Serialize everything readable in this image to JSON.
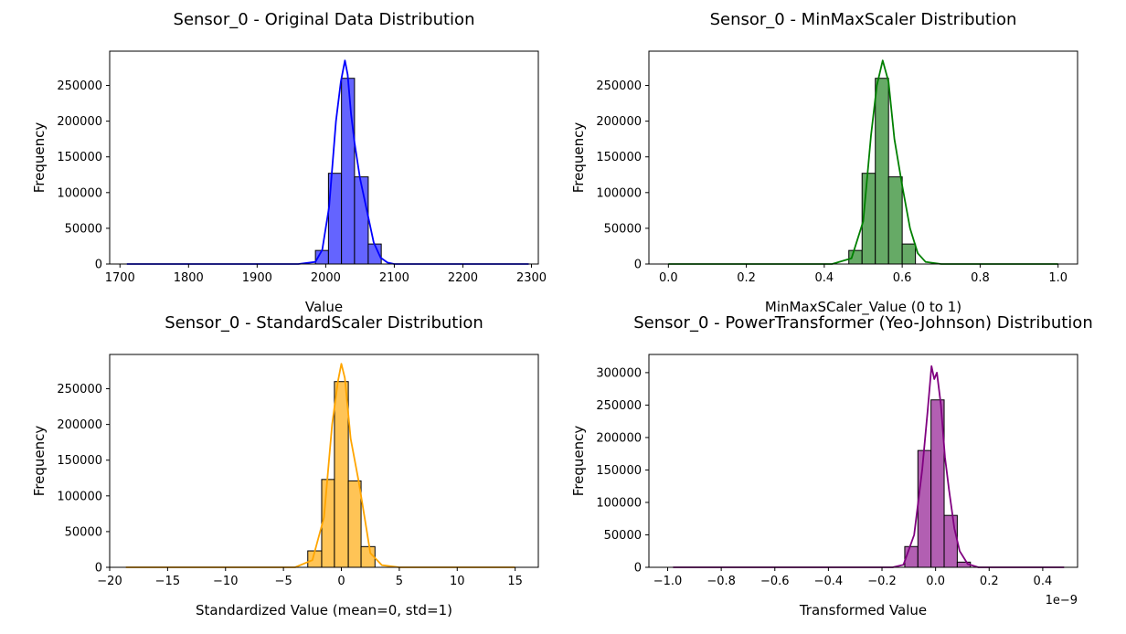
{
  "chart_data": [
    {
      "type": "histogram",
      "title": "Sensor_0 - Original Data Distribution",
      "xlabel": "Value",
      "ylabel": "Frequency",
      "xlim": [
        1685,
        2310
      ],
      "ylim": [
        0,
        298000
      ],
      "xticks": [
        1700,
        1800,
        1900,
        2000,
        2100,
        2200,
        2300
      ],
      "xtick_labels": [
        "1700",
        "1800",
        "1900",
        "2000",
        "2100",
        "2200",
        "2300"
      ],
      "yticks": [
        0,
        50000,
        100000,
        150000,
        200000,
        250000
      ],
      "ytick_labels": [
        "0",
        "50000",
        "100000",
        "150000",
        "200000",
        "250000"
      ],
      "bar_color": "#6464ff",
      "line_color": "#0000ff",
      "bins": [
        {
          "x0": 1985,
          "x1": 2004,
          "count": 19000
        },
        {
          "x0": 2004,
          "x1": 2023,
          "count": 127000
        },
        {
          "x0": 2023,
          "x1": 2042,
          "count": 260000
        },
        {
          "x0": 2042,
          "x1": 2062,
          "count": 122000
        },
        {
          "x0": 2062,
          "x1": 2081,
          "count": 28000
        }
      ],
      "kde": {
        "x": [
          1710,
          1960,
          1985,
          1995,
          2005,
          2015,
          2022,
          2028,
          2032,
          2037,
          2042,
          2050,
          2060,
          2070,
          2080,
          2090,
          2100,
          2296
        ],
        "y": [
          0,
          0,
          3000,
          20000,
          80000,
          200000,
          255000,
          285000,
          265000,
          210000,
          170000,
          120000,
          75000,
          30000,
          9000,
          2000,
          0,
          0
        ]
      }
    },
    {
      "type": "histogram",
      "title": "Sensor_0 - MinMaxScaler Distribution",
      "xlabel": "MinMaxSCaler_Value (0 to 1)",
      "ylabel": "Frequency",
      "xlim": [
        -0.05,
        1.05
      ],
      "ylim": [
        0,
        298000
      ],
      "xticks": [
        0.0,
        0.2,
        0.4,
        0.6,
        0.8,
        1.0
      ],
      "xtick_labels": [
        "0.0",
        "0.2",
        "0.4",
        "0.6",
        "0.8",
        "1.0"
      ],
      "yticks": [
        0,
        50000,
        100000,
        150000,
        200000,
        250000
      ],
      "ytick_labels": [
        "0",
        "50000",
        "100000",
        "150000",
        "200000",
        "250000"
      ],
      "bar_color": "#66aa66",
      "line_color": "#008000",
      "bins": [
        {
          "x0": 0.463,
          "x1": 0.497,
          "count": 19000
        },
        {
          "x0": 0.497,
          "x1": 0.531,
          "count": 127000
        },
        {
          "x0": 0.531,
          "x1": 0.565,
          "count": 260000
        },
        {
          "x0": 0.565,
          "x1": 0.6,
          "count": 122000
        },
        {
          "x0": 0.6,
          "x1": 0.634,
          "count": 28000
        }
      ],
      "kde": {
        "x": [
          0.0,
          0.42,
          0.47,
          0.5,
          0.52,
          0.535,
          0.55,
          0.565,
          0.58,
          0.6,
          0.62,
          0.64,
          0.66,
          0.7,
          1.0
        ],
        "y": [
          0,
          0,
          8000,
          60000,
          180000,
          250000,
          285000,
          255000,
          175000,
          110000,
          50000,
          15000,
          3000,
          0,
          0
        ]
      }
    },
    {
      "type": "histogram",
      "title": "Sensor_0 - StandardScaler Distribution",
      "xlabel": "Standardized Value (mean=0, std=1)",
      "ylabel": "Frequency",
      "xlim": [
        -20,
        17
      ],
      "ylim": [
        0,
        298000
      ],
      "xticks": [
        -20,
        -15,
        -10,
        -5,
        0,
        5,
        10,
        15
      ],
      "xtick_labels": [
        "−20",
        "−15",
        "−10",
        "−5",
        "0",
        "5",
        "10",
        "15"
      ],
      "yticks": [
        0,
        50000,
        100000,
        150000,
        200000,
        250000
      ],
      "ytick_labels": [
        "0",
        "50000",
        "100000",
        "150000",
        "200000",
        "250000"
      ],
      "bar_color": "#ffc456",
      "line_color": "#ffa500",
      "bins": [
        {
          "x0": -2.9,
          "x1": -1.7,
          "count": 23000
        },
        {
          "x0": -1.7,
          "x1": -0.6,
          "count": 123000
        },
        {
          "x0": -0.6,
          "x1": 0.6,
          "count": 260000
        },
        {
          "x0": 0.6,
          "x1": 1.7,
          "count": 121000
        },
        {
          "x0": 1.7,
          "x1": 2.9,
          "count": 29000
        }
      ],
      "kde": {
        "x": [
          -18.6,
          -4,
          -2.5,
          -1.5,
          -0.8,
          -0.3,
          0,
          0.3,
          0.8,
          1.5,
          2.0,
          2.5,
          3.5,
          5,
          15
        ],
        "y": [
          0,
          0,
          10000,
          70000,
          200000,
          260000,
          285000,
          265000,
          180000,
          120000,
          70000,
          20000,
          3000,
          0,
          0
        ]
      }
    },
    {
      "type": "histogram",
      "title": "Sensor_0 - PowerTransformer (Yeo-Johnson) Distribution",
      "xlabel": "Transformed Value",
      "ylabel": "Frequency",
      "x_offset_label": "1e−9",
      "xlim": [
        -1.07,
        0.53
      ],
      "ylim": [
        0,
        328000
      ],
      "xticks": [
        -1.0,
        -0.8,
        -0.6,
        -0.4,
        -0.2,
        0.0,
        0.2,
        0.4
      ],
      "xtick_labels": [
        "−1.0",
        "−0.8",
        "−0.6",
        "−0.4",
        "−0.2",
        "0.0",
        "0.2",
        "0.4"
      ],
      "yticks": [
        0,
        50000,
        100000,
        150000,
        200000,
        250000,
        300000
      ],
      "ytick_labels": [
        "0",
        "50000",
        "100000",
        "150000",
        "200000",
        "250000",
        "300000"
      ],
      "bar_color": "#b25fb2",
      "line_color": "#800080",
      "bins": [
        {
          "x0": -0.115,
          "x1": -0.066,
          "count": 32000
        },
        {
          "x0": -0.066,
          "x1": -0.017,
          "count": 180000
        },
        {
          "x0": -0.017,
          "x1": 0.032,
          "count": 258000
        },
        {
          "x0": 0.032,
          "x1": 0.081,
          "count": 80000
        },
        {
          "x0": 0.081,
          "x1": 0.13,
          "count": 8000
        }
      ],
      "kde": {
        "x": [
          -0.98,
          -0.16,
          -0.12,
          -0.08,
          -0.05,
          -0.03,
          -0.015,
          -0.005,
          0.005,
          0.02,
          0.035,
          0.05,
          0.07,
          0.09,
          0.12,
          0.16,
          0.48
        ],
        "y": [
          0,
          0,
          4000,
          50000,
          150000,
          240000,
          310000,
          290000,
          300000,
          250000,
          170000,
          120000,
          60000,
          25000,
          5000,
          0,
          0
        ]
      }
    }
  ]
}
